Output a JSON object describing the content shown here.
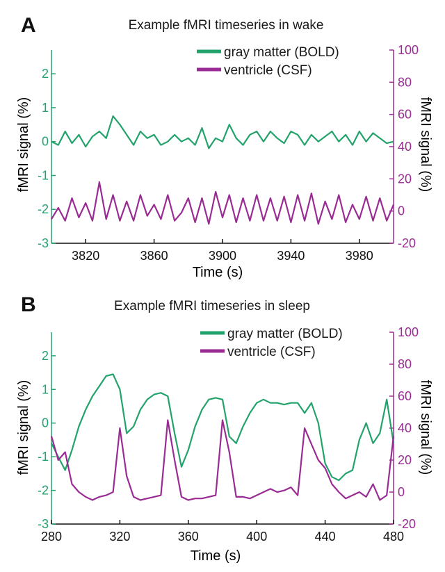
{
  "colors": {
    "bold": "#22a36b",
    "csf": "#9b2b94",
    "axis": "#111111"
  },
  "chart_data": [
    {
      "panel": "A",
      "type": "line",
      "title": "Example fMRI timeseries in wake",
      "xlabel": "Time (s)",
      "ylabel_left": "fMRI signal (%)",
      "ylabel_right": "fMRI signal (%)",
      "xlim": [
        3800,
        4000
      ],
      "ylim_left": [
        -3,
        2.7
      ],
      "ylim_right": [
        -20,
        100
      ],
      "xticks": [
        3820,
        3860,
        3900,
        3940,
        3980
      ],
      "yticks_left": [
        -3,
        -2,
        -1,
        0,
        1,
        2
      ],
      "yticks_right": [
        -20,
        0,
        20,
        40,
        60,
        80,
        100
      ],
      "legend": "top-right",
      "series": [
        {
          "name": "gray matter (BOLD)",
          "axis": "left",
          "color": "#22a36b",
          "x": [
            3800,
            3804,
            3808,
            3812,
            3816,
            3820,
            3824,
            3828,
            3832,
            3836,
            3840,
            3844,
            3848,
            3852,
            3856,
            3860,
            3864,
            3868,
            3872,
            3876,
            3880,
            3884,
            3888,
            3892,
            3896,
            3900,
            3904,
            3908,
            3912,
            3916,
            3920,
            3924,
            3928,
            3932,
            3936,
            3940,
            3944,
            3948,
            3952,
            3956,
            3960,
            3964,
            3968,
            3972,
            3976,
            3980,
            3984,
            3988,
            3992,
            3996,
            4000
          ],
          "y": [
            0.0,
            -0.1,
            0.3,
            -0.05,
            0.2,
            -0.15,
            0.15,
            0.3,
            0.1,
            0.75,
            0.5,
            0.2,
            -0.1,
            0.3,
            0.1,
            0.2,
            -0.1,
            0.0,
            0.2,
            0.0,
            0.1,
            -0.1,
            0.4,
            -0.2,
            0.1,
            0.0,
            0.5,
            0.1,
            -0.1,
            0.2,
            0.3,
            0.0,
            0.3,
            0.1,
            -0.05,
            0.3,
            0.2,
            -0.1,
            0.2,
            0.0,
            0.15,
            0.3,
            0.0,
            0.2,
            -0.1,
            0.3,
            0.0,
            0.25,
            0.1,
            -0.05,
            0.0
          ]
        },
        {
          "name": "ventricle (CSF)",
          "axis": "right",
          "color": "#9b2b94",
          "x": [
            3800,
            3804,
            3808,
            3812,
            3816,
            3820,
            3824,
            3828,
            3832,
            3836,
            3840,
            3844,
            3848,
            3852,
            3856,
            3860,
            3864,
            3868,
            3872,
            3876,
            3880,
            3884,
            3888,
            3892,
            3896,
            3900,
            3904,
            3908,
            3912,
            3916,
            3920,
            3924,
            3928,
            3932,
            3936,
            3940,
            3944,
            3948,
            3952,
            3956,
            3960,
            3964,
            3968,
            3972,
            3976,
            3980,
            3984,
            3988,
            3992,
            3996,
            4000
          ],
          "y": [
            -5,
            2,
            -6,
            8,
            -4,
            5,
            -6,
            18,
            -5,
            10,
            -6,
            6,
            -6,
            10,
            -3,
            4,
            -5,
            10,
            -6,
            -1,
            8,
            -7,
            8,
            -8,
            12,
            -4,
            10,
            -7,
            8,
            -6,
            10,
            -6,
            8,
            -6,
            9,
            -7,
            10,
            -6,
            11,
            -8,
            6,
            -5,
            10,
            -7,
            4,
            -5,
            9,
            -6,
            8,
            -6,
            4
          ]
        }
      ]
    },
    {
      "panel": "B",
      "type": "line",
      "title": "Example fMRI timeseries in sleep",
      "xlabel": "Time (s)",
      "ylabel_left": "fMRI signal (%)",
      "ylabel_right": "fMRI signal (%)",
      "xlim": [
        280,
        480
      ],
      "ylim_left": [
        -3,
        2.7
      ],
      "ylim_right": [
        -20,
        100
      ],
      "xticks": [
        280,
        320,
        360,
        400,
        440,
        480
      ],
      "yticks_left": [
        -3,
        -2,
        -1,
        0,
        1,
        2
      ],
      "yticks_right": [
        -20,
        0,
        20,
        40,
        60,
        80,
        100
      ],
      "legend": "top-right",
      "series": [
        {
          "name": "gray matter (BOLD)",
          "axis": "left",
          "color": "#22a36b",
          "x": [
            280,
            284,
            288,
            292,
            296,
            300,
            304,
            308,
            312,
            316,
            320,
            324,
            328,
            332,
            336,
            340,
            344,
            348,
            352,
            356,
            360,
            364,
            368,
            372,
            376,
            380,
            384,
            388,
            392,
            396,
            400,
            404,
            408,
            412,
            416,
            420,
            424,
            428,
            432,
            436,
            440,
            444,
            448,
            452,
            456,
            460,
            464,
            468,
            472,
            476,
            480
          ],
          "y": [
            -0.6,
            -1.0,
            -1.4,
            -0.8,
            -0.1,
            0.4,
            0.8,
            1.1,
            1.4,
            1.45,
            1.0,
            -0.3,
            -0.1,
            0.4,
            0.7,
            0.85,
            0.9,
            0.8,
            -0.3,
            -1.3,
            -0.8,
            -0.1,
            0.4,
            0.7,
            0.75,
            0.7,
            -0.4,
            -0.6,
            -0.1,
            0.3,
            0.6,
            0.7,
            0.6,
            0.6,
            0.55,
            0.6,
            0.6,
            0.3,
            0.6,
            0.0,
            -1.2,
            -1.6,
            -1.7,
            -1.5,
            -1.4,
            -0.5,
            0.0,
            -0.6,
            -0.3,
            0.7,
            -0.6
          ]
        },
        {
          "name": "ventricle (CSF)",
          "axis": "right",
          "color": "#9b2b94",
          "x": [
            280,
            284,
            288,
            292,
            296,
            300,
            304,
            308,
            312,
            316,
            320,
            324,
            328,
            332,
            336,
            340,
            344,
            348,
            352,
            356,
            360,
            364,
            368,
            372,
            376,
            380,
            384,
            388,
            392,
            396,
            400,
            404,
            408,
            412,
            416,
            420,
            424,
            428,
            432,
            436,
            440,
            444,
            448,
            452,
            456,
            460,
            464,
            468,
            472,
            476,
            480
          ],
          "y": [
            35,
            20,
            25,
            5,
            0,
            -3,
            -5,
            -3,
            -2,
            0,
            40,
            10,
            -3,
            -5,
            -4,
            -3,
            -2,
            45,
            20,
            -3,
            -5,
            -4,
            -4,
            -3,
            -2,
            45,
            25,
            -3,
            -3,
            -4,
            -2,
            0,
            2,
            0,
            1,
            3,
            -2,
            40,
            30,
            20,
            15,
            5,
            0,
            -4,
            -2,
            0,
            -3,
            5,
            -5,
            -2,
            35
          ]
        }
      ]
    }
  ]
}
